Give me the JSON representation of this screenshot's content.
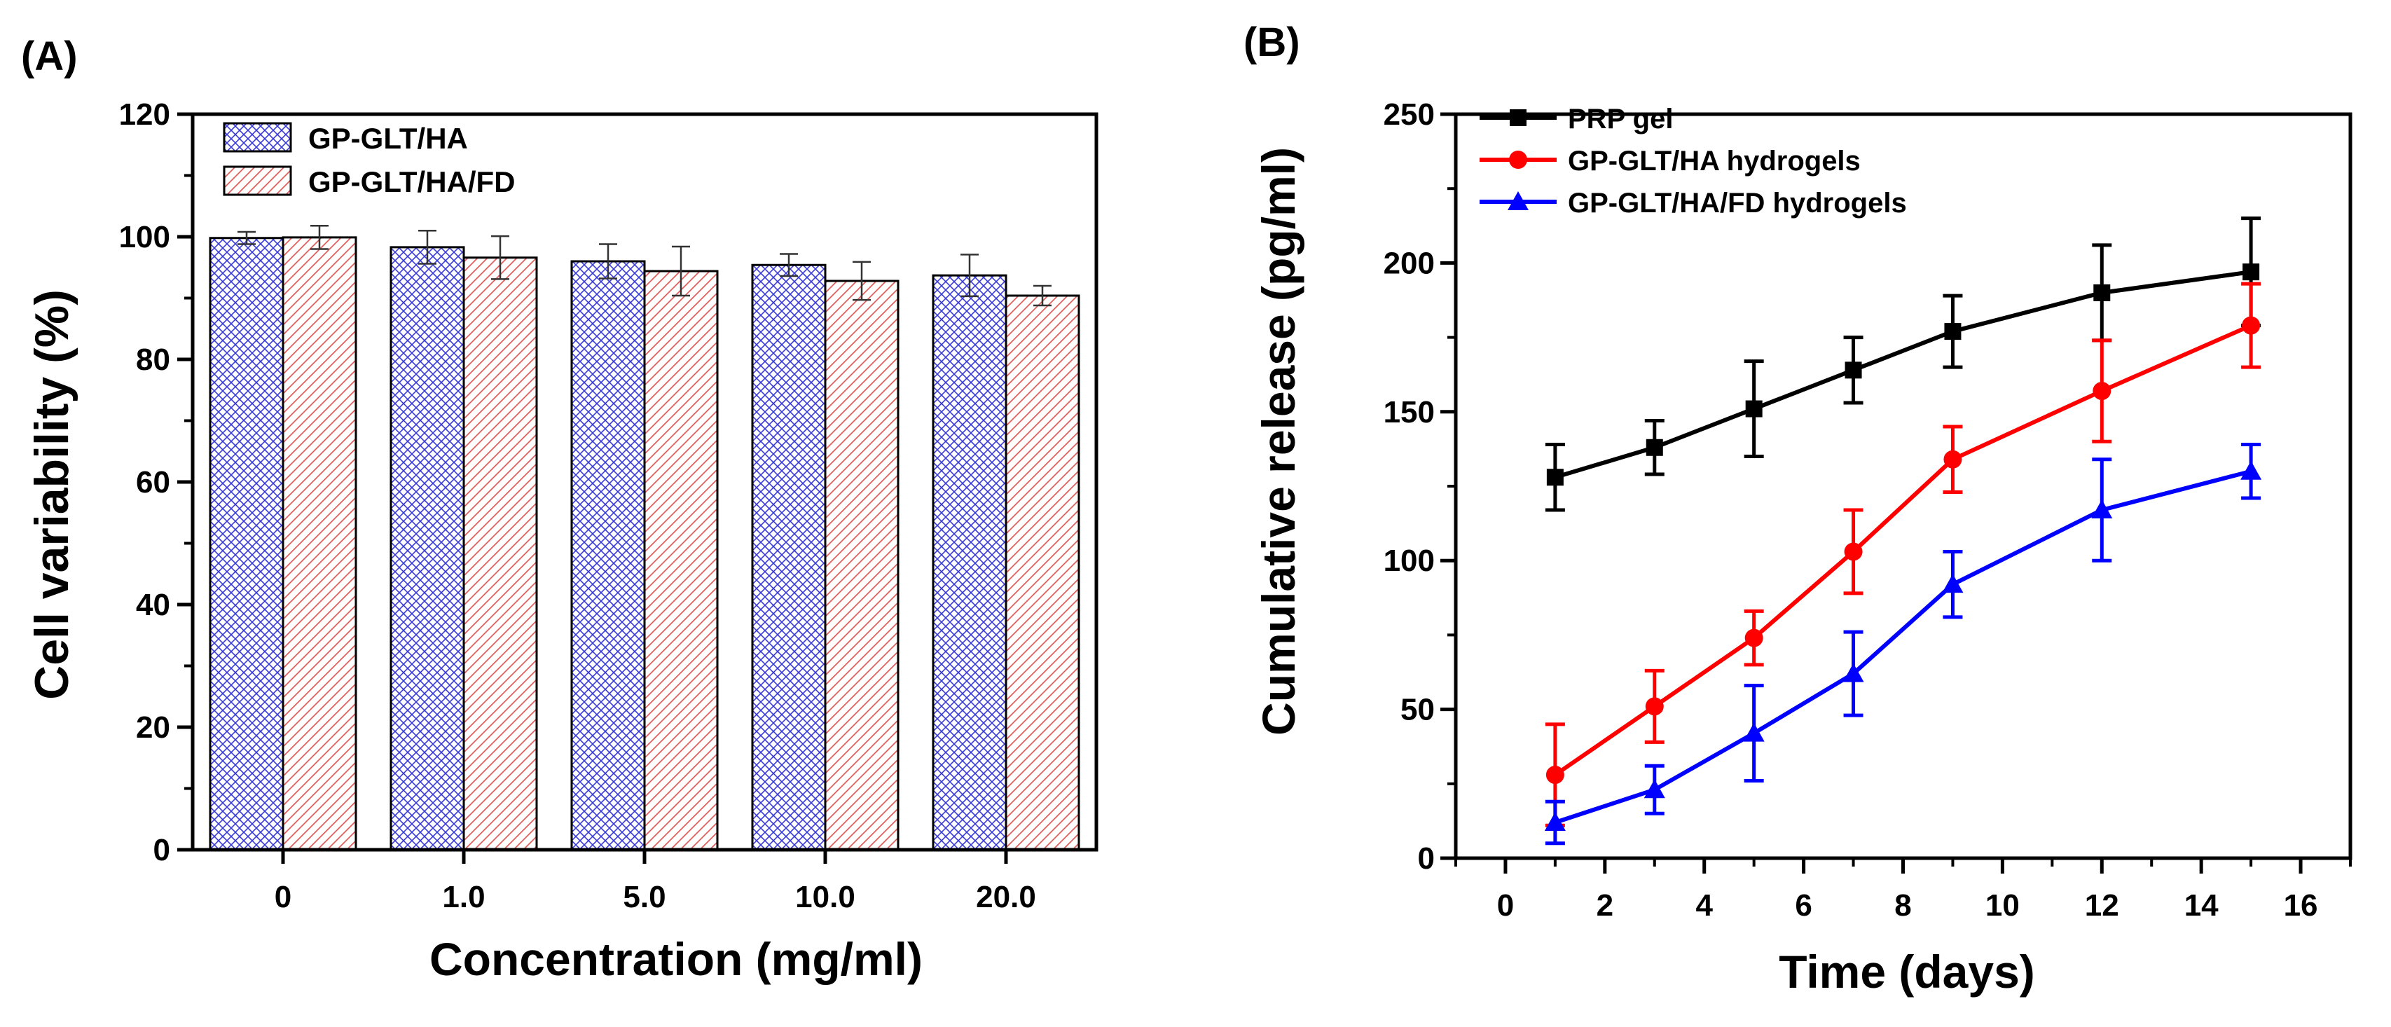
{
  "chart_data": [
    {
      "panel_label": "(A)",
      "type": "bar",
      "xlabel": "Concentration (mg/ml)",
      "ylabel": "Cell variability (%)",
      "ylim": [
        0,
        120
      ],
      "yticks": [
        "0",
        "20",
        "40",
        "60",
        "80",
        "100",
        "120"
      ],
      "categories": [
        "0",
        "1.0",
        "5.0",
        "10.0",
        "20.0"
      ],
      "series": [
        {
          "name": "GP-GLT/HA",
          "color": "#3a3ad6",
          "pattern": "crosshatch",
          "values": [
            99.8,
            98.3,
            96.0,
            95.4,
            93.7
          ],
          "errors": [
            1.0,
            2.7,
            2.8,
            1.8,
            3.4
          ]
        },
        {
          "name": "GP-GLT/HA/FD",
          "color": "#e06060",
          "pattern": "diagonal",
          "values": [
            99.9,
            96.6,
            94.4,
            92.8,
            90.4
          ],
          "errors": [
            1.9,
            3.5,
            4.0,
            3.1,
            1.6
          ]
        }
      ],
      "legend": "top-left"
    },
    {
      "panel_label": "(B)",
      "type": "line",
      "xlabel": "Time (days)",
      "ylabel": "Cumulative release (pg/ml)",
      "xlim": [
        -1,
        17
      ],
      "ylim": [
        0,
        250
      ],
      "xticks": [
        "0",
        "2",
        "4",
        "6",
        "8",
        "10",
        "12",
        "14",
        "16"
      ],
      "yticks": [
        "0",
        "50",
        "100",
        "150",
        "200",
        "250"
      ],
      "x": [
        1,
        3,
        5,
        7,
        9,
        12,
        15
      ],
      "series": [
        {
          "name": "PRP gel",
          "color": "#000000",
          "marker": "square",
          "values": [
            128,
            138,
            151,
            164,
            177,
            190,
            197
          ],
          "errors": [
            11,
            9,
            16,
            11,
            12,
            16,
            18
          ]
        },
        {
          "name": "GP-GLT/HA hydrogels",
          "color": "#ff0000",
          "marker": "circle",
          "values": [
            28,
            51,
            74,
            103,
            134,
            157,
            179
          ],
          "errors": [
            17,
            12,
            9,
            14,
            11,
            17,
            14
          ]
        },
        {
          "name": "GP-GLT/HA/FD hydrogels",
          "color": "#0000ff",
          "marker": "triangle",
          "values": [
            12,
            23,
            42,
            62,
            92,
            117,
            130
          ],
          "errors": [
            7,
            8,
            16,
            14,
            11,
            17,
            9
          ]
        }
      ],
      "legend": "top-left"
    }
  ]
}
